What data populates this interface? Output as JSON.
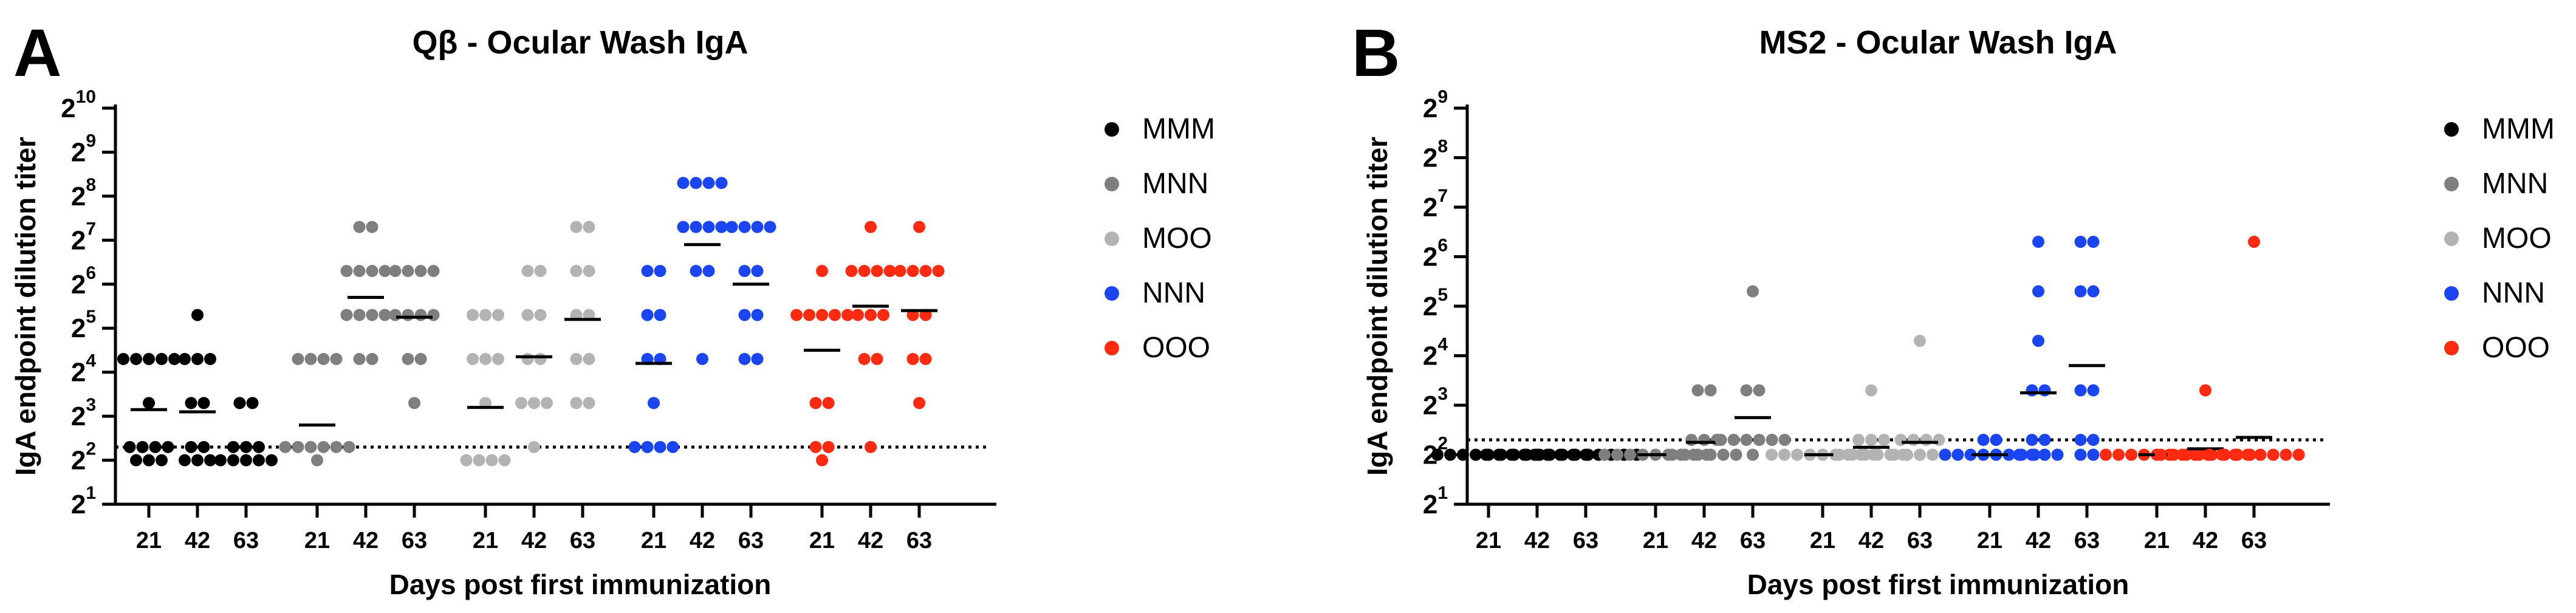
{
  "chart_data": [
    {
      "panel": "A",
      "type": "scatter",
      "title": "Qβ - Ocular Wash IgA",
      "xlabel": "Days post first immunization",
      "ylabel": "IgA endpoint dilution titer",
      "y_axis": {
        "base": "2",
        "exp_min": 1,
        "exp_max": 10,
        "tick_exponents": [
          1,
          2,
          3,
          4,
          5,
          6,
          7,
          8,
          9,
          10
        ],
        "scale": "log2"
      },
      "detection_limit_exponent": 2.3,
      "x_tick_labels": [
        "21",
        "42",
        "63",
        "21",
        "42",
        "63",
        "21",
        "42",
        "63",
        "21",
        "42",
        "63",
        "21",
        "42",
        "63"
      ],
      "legend": [
        {
          "name": "MMM",
          "color": "#000000"
        },
        {
          "name": "MNN",
          "color": "#7f7f7f"
        },
        {
          "name": "MOO",
          "color": "#b3b3b3"
        },
        {
          "name": "NNN",
          "color": "#1a45f0"
        },
        {
          "name": "OOO",
          "color": "#ff2a12"
        }
      ],
      "groups": [
        {
          "name": "MMM",
          "color": "#000000",
          "timepoints": [
            {
              "day": "21",
              "mean": 3.15,
              "values": [
                4.3,
                4.3,
                4.3,
                4.3,
                4.3,
                3.3,
                2.3,
                2.3,
                2.3,
                2.3,
                2.0,
                2.0,
                2.0
              ]
            },
            {
              "day": "42",
              "mean": 3.1,
              "values": [
                5.3,
                4.3,
                4.3,
                4.3,
                3.3,
                3.3,
                2.3,
                2.3,
                2.0,
                2.0,
                2.0
              ]
            },
            {
              "day": "63",
              "mean": 2.3,
              "values": [
                3.3,
                3.3,
                2.3,
                2.3,
                2.3,
                2.0,
                2.0,
                2.0,
                2.0,
                2.0
              ]
            }
          ]
        },
        {
          "name": "MNN",
          "color": "#7f7f7f",
          "timepoints": [
            {
              "day": "21",
              "mean": 2.8,
              "values": [
                4.3,
                4.3,
                4.3,
                4.3,
                2.3,
                2.3,
                2.3,
                2.3,
                2.3,
                2.3,
                2.0
              ]
            },
            {
              "day": "42",
              "mean": 5.7,
              "values": [
                7.3,
                7.3,
                6.3,
                6.3,
                6.3,
                6.3,
                5.3,
                5.3,
                5.3,
                5.3,
                4.3,
                4.3
              ]
            },
            {
              "day": "63",
              "mean": 5.25,
              "values": [
                6.3,
                6.3,
                6.3,
                6.3,
                5.3,
                5.3,
                5.3,
                5.3,
                4.3,
                4.3,
                3.3
              ]
            }
          ]
        },
        {
          "name": "MOO",
          "color": "#b3b3b3",
          "timepoints": [
            {
              "day": "21",
              "mean": 3.2,
              "values": [
                5.3,
                5.3,
                5.3,
                4.3,
                4.3,
                4.3,
                3.3,
                2.0,
                2.0,
                2.0,
                2.0
              ]
            },
            {
              "day": "42",
              "mean": 4.35,
              "values": [
                6.3,
                6.3,
                5.3,
                5.3,
                4.3,
                4.3,
                3.3,
                3.3,
                3.3,
                2.3
              ]
            },
            {
              "day": "63",
              "mean": 5.2,
              "values": [
                7.3,
                7.3,
                6.3,
                6.3,
                5.3,
                5.3,
                4.3,
                4.3,
                3.3,
                3.3
              ]
            }
          ]
        },
        {
          "name": "NNN",
          "color": "#1a45f0",
          "timepoints": [
            {
              "day": "21",
              "mean": 4.2,
              "values": [
                6.3,
                6.3,
                5.3,
                5.3,
                4.3,
                4.3,
                3.3,
                2.3,
                2.3,
                2.3,
                2.3
              ]
            },
            {
              "day": "42",
              "mean": 6.9,
              "values": [
                8.3,
                8.3,
                8.3,
                8.3,
                7.3,
                7.3,
                7.3,
                7.3,
                6.3,
                6.3,
                4.3
              ]
            },
            {
              "day": "63",
              "mean": 6.0,
              "values": [
                7.3,
                7.3,
                7.3,
                7.3,
                6.3,
                6.3,
                5.3,
                5.3,
                4.3,
                4.3
              ]
            }
          ]
        },
        {
          "name": "OOO",
          "color": "#ff2a12",
          "timepoints": [
            {
              "day": "21",
              "mean": 4.5,
              "values": [
                6.3,
                5.3,
                5.3,
                5.3,
                5.3,
                5.3,
                3.3,
                3.3,
                2.3,
                2.3,
                2.0
              ]
            },
            {
              "day": "42",
              "mean": 5.5,
              "values": [
                7.3,
                6.3,
                6.3,
                6.3,
                6.3,
                5.3,
                5.3,
                5.3,
                4.3,
                4.3,
                2.3
              ]
            },
            {
              "day": "63",
              "mean": 5.4,
              "values": [
                7.3,
                6.3,
                6.3,
                6.3,
                6.3,
                5.3,
                5.3,
                4.3,
                4.3,
                3.3
              ]
            }
          ]
        }
      ]
    },
    {
      "panel": "B",
      "type": "scatter",
      "title": "MS2 - Ocular Wash IgA",
      "xlabel": "Days post first immunization",
      "ylabel": "IgA endpoint dilution titer",
      "y_axis": {
        "base": "2",
        "exp_min": 1,
        "exp_max": 9,
        "tick_exponents": [
          1,
          2,
          3,
          4,
          5,
          6,
          7,
          8,
          9
        ],
        "scale": "log2"
      },
      "detection_limit_exponent": 2.3,
      "x_tick_labels": [
        "21",
        "42",
        "63",
        "21",
        "42",
        "63",
        "21",
        "42",
        "63",
        "21",
        "42",
        "63",
        "21",
        "42",
        "63"
      ],
      "legend": [
        {
          "name": "MMM",
          "color": "#000000"
        },
        {
          "name": "MNN",
          "color": "#7f7f7f"
        },
        {
          "name": "MOO",
          "color": "#b3b3b3"
        },
        {
          "name": "NNN",
          "color": "#1a45f0"
        },
        {
          "name": "OOO",
          "color": "#ff2a12"
        }
      ],
      "groups": [
        {
          "name": "MMM",
          "color": "#000000",
          "timepoints": [
            {
              "day": "21",
              "mean": 2.0,
              "values": [
                2.0,
                2.0,
                2.0,
                2.0,
                2.0,
                2.0,
                2.0,
                2.0,
                2.0
              ]
            },
            {
              "day": "42",
              "mean": 2.0,
              "values": [
                2.0,
                2.0,
                2.0,
                2.0,
                2.0,
                2.0,
                2.0,
                2.0,
                2.0
              ]
            },
            {
              "day": "63",
              "mean": 2.0,
              "values": [
                2.0,
                2.0,
                2.0,
                2.0,
                2.0,
                2.0,
                2.0,
                2.0,
                2.0
              ]
            }
          ]
        },
        {
          "name": "MNN",
          "color": "#7f7f7f",
          "timepoints": [
            {
              "day": "21",
              "mean": 2.0,
              "values": [
                2.0,
                2.0,
                2.0,
                2.0,
                2.0,
                2.0,
                2.0,
                2.0,
                2.0
              ]
            },
            {
              "day": "42",
              "mean": 2.25,
              "values": [
                3.3,
                3.3,
                2.3,
                2.3,
                2.3,
                2.0,
                2.0,
                2.0,
                2.0,
                2.0,
                2.0
              ]
            },
            {
              "day": "63",
              "mean": 2.75,
              "values": [
                5.3,
                3.3,
                3.3,
                2.3,
                2.3,
                2.3,
                2.3,
                2.3,
                2.3,
                2.0
              ]
            }
          ]
        },
        {
          "name": "MOO",
          "color": "#b3b3b3",
          "timepoints": [
            {
              "day": "21",
              "mean": 2.0,
              "values": [
                2.0,
                2.0,
                2.0,
                2.0,
                2.0,
                2.0,
                2.0,
                2.0,
                2.0
              ]
            },
            {
              "day": "42",
              "mean": 2.15,
              "values": [
                3.3,
                2.3,
                2.3,
                2.3,
                2.0,
                2.0,
                2.0,
                2.0,
                2.0,
                2.0
              ]
            },
            {
              "day": "63",
              "mean": 2.25,
              "values": [
                4.3,
                2.3,
                2.3,
                2.3,
                2.3,
                2.0,
                2.0,
                2.0,
                2.0,
                2.0
              ]
            }
          ]
        },
        {
          "name": "NNN",
          "color": "#1a45f0",
          "timepoints": [
            {
              "day": "21",
              "mean": 2.0,
              "values": [
                2.3,
                2.3,
                2.0,
                2.0,
                2.0,
                2.0,
                2.0,
                2.0,
                2.0,
                2.0
              ]
            },
            {
              "day": "42",
              "mean": 3.25,
              "values": [
                6.3,
                5.3,
                4.3,
                3.3,
                3.3,
                2.3,
                2.3,
                2.0,
                2.0,
                2.0,
                2.0
              ]
            },
            {
              "day": "63",
              "mean": 3.8,
              "values": [
                6.3,
                6.3,
                5.3,
                5.3,
                3.3,
                3.3,
                2.3,
                2.3,
                2.0,
                2.0
              ]
            }
          ]
        },
        {
          "name": "OOO",
          "color": "#ff2a12",
          "timepoints": [
            {
              "day": "21",
              "mean": 2.0,
              "values": [
                2.0,
                2.0,
                2.0,
                2.0,
                2.0,
                2.0,
                2.0,
                2.0,
                2.0
              ]
            },
            {
              "day": "42",
              "mean": 2.12,
              "values": [
                3.3,
                2.0,
                2.0,
                2.0,
                2.0,
                2.0,
                2.0,
                2.0,
                2.0
              ]
            },
            {
              "day": "63",
              "mean": 2.35,
              "values": [
                6.3,
                2.0,
                2.0,
                2.0,
                2.0,
                2.0,
                2.0,
                2.0,
                2.0
              ]
            }
          ]
        }
      ]
    }
  ]
}
